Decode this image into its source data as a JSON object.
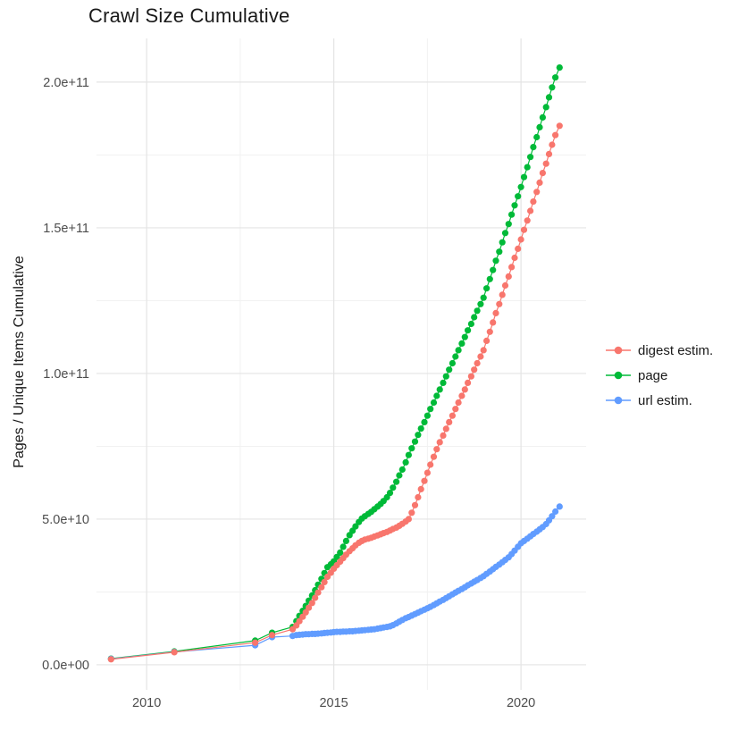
{
  "title": "Crawl Size Cumulative",
  "chart_data": {
    "type": "scatter",
    "title": "Crawl Size Cumulative",
    "xlabel": "",
    "ylabel": "Pages / Unique Items Cumulative",
    "units": "values in billions of pages (1e9)",
    "grid": "on",
    "legend_position": "right",
    "x_domain": [
      2008.66,
      2021.74
    ],
    "y_domain_e9": [
      -8.6,
      215.0
    ],
    "x_ticks": {
      "values": [
        2010,
        2015,
        2020
      ],
      "labels": [
        "2010",
        "2015",
        "2020"
      ],
      "minor": [
        2012.5,
        2017.5
      ]
    },
    "y_ticks": {
      "values": [
        0,
        50,
        100,
        150,
        200
      ],
      "labels": [
        "0.0e+00",
        "5.0e+10",
        "1.0e+11",
        "1.5e+11",
        "2.0e+11"
      ],
      "minor": [
        25,
        75,
        125,
        175
      ]
    },
    "series": [
      {
        "name": "digest estim.",
        "color": "#F8766D",
        "points": [
          [
            2009.05,
            1.9
          ],
          [
            2010.74,
            4.3
          ],
          [
            2012.9,
            7.6
          ],
          [
            2013.35,
            10.2
          ],
          [
            2013.9,
            12.2
          ],
          [
            2014,
            13.5
          ],
          [
            2014.08,
            15
          ],
          [
            2014.17,
            16.5
          ],
          [
            2014.25,
            18
          ],
          [
            2014.33,
            19.6
          ],
          [
            2014.42,
            21.2
          ],
          [
            2014.5,
            23
          ],
          [
            2014.58,
            24.8
          ],
          [
            2014.67,
            26.6
          ],
          [
            2014.75,
            28.4
          ],
          [
            2014.83,
            30.2
          ],
          [
            2014.92,
            31.6
          ],
          [
            2015,
            33
          ],
          [
            2015.08,
            34.2
          ],
          [
            2015.17,
            35.4
          ],
          [
            2015.25,
            36.6
          ],
          [
            2015.33,
            37.8
          ],
          [
            2015.42,
            39
          ],
          [
            2015.5,
            40
          ],
          [
            2015.58,
            41
          ],
          [
            2015.67,
            41.9
          ],
          [
            2015.75,
            42.5
          ],
          [
            2015.83,
            43
          ],
          [
            2015.92,
            43.3
          ],
          [
            2016,
            43.6
          ],
          [
            2016.08,
            44
          ],
          [
            2016.17,
            44.4
          ],
          [
            2016.25,
            44.8
          ],
          [
            2016.33,
            45.2
          ],
          [
            2016.42,
            45.6
          ],
          [
            2016.5,
            46.1
          ],
          [
            2016.58,
            46.6
          ],
          [
            2016.67,
            47.1
          ],
          [
            2016.75,
            47.7
          ],
          [
            2016.83,
            48.4
          ],
          [
            2016.92,
            49.2
          ],
          [
            2017,
            50
          ],
          [
            2017.08,
            52.2
          ],
          [
            2017.17,
            54.8
          ],
          [
            2017.25,
            57.5
          ],
          [
            2017.33,
            60.3
          ],
          [
            2017.42,
            63.1
          ],
          [
            2017.5,
            65.9
          ],
          [
            2017.58,
            68.7
          ],
          [
            2017.67,
            71.4
          ],
          [
            2017.75,
            74
          ],
          [
            2017.83,
            76.4
          ],
          [
            2017.92,
            78.7
          ],
          [
            2018,
            81
          ],
          [
            2018.08,
            83.3
          ],
          [
            2018.17,
            85.5
          ],
          [
            2018.25,
            87.8
          ],
          [
            2018.33,
            90
          ],
          [
            2018.42,
            92.3
          ],
          [
            2018.5,
            94.5
          ],
          [
            2018.58,
            96.8
          ],
          [
            2018.67,
            99
          ],
          [
            2018.75,
            101.3
          ],
          [
            2018.83,
            103.5
          ],
          [
            2018.92,
            105.8
          ],
          [
            2019,
            108
          ],
          [
            2019.08,
            111.2
          ],
          [
            2019.17,
            114.3
          ],
          [
            2019.25,
            117.5
          ],
          [
            2019.33,
            120.7
          ],
          [
            2019.42,
            123.8
          ],
          [
            2019.5,
            127
          ],
          [
            2019.58,
            130.2
          ],
          [
            2019.67,
            133.3
          ],
          [
            2019.75,
            136.5
          ],
          [
            2019.83,
            139.7
          ],
          [
            2019.92,
            142.8
          ],
          [
            2020,
            146
          ],
          [
            2020.08,
            149.3
          ],
          [
            2020.17,
            152.5
          ],
          [
            2020.25,
            155.8
          ],
          [
            2020.33,
            159
          ],
          [
            2020.42,
            162.3
          ],
          [
            2020.5,
            165.5
          ],
          [
            2020.58,
            168.8
          ],
          [
            2020.67,
            172
          ],
          [
            2020.75,
            175.3
          ],
          [
            2020.83,
            178.5
          ],
          [
            2020.92,
            181.8
          ],
          [
            2021.03,
            185
          ]
        ]
      },
      {
        "name": "page",
        "color": "#00BA38",
        "points": [
          [
            2009.05,
            2.1
          ],
          [
            2010.74,
            4.6
          ],
          [
            2012.9,
            8.3
          ],
          [
            2013.35,
            11
          ],
          [
            2013.9,
            13
          ],
          [
            2014,
            15
          ],
          [
            2014.08,
            16.8
          ],
          [
            2014.17,
            18.5
          ],
          [
            2014.25,
            20.2
          ],
          [
            2014.33,
            22
          ],
          [
            2014.42,
            23.8
          ],
          [
            2014.5,
            25.6
          ],
          [
            2014.58,
            27.5
          ],
          [
            2014.67,
            29.5
          ],
          [
            2014.75,
            31.5
          ],
          [
            2014.83,
            33.5
          ],
          [
            2014.92,
            34.5
          ],
          [
            2015,
            35.5
          ],
          [
            2015.08,
            37
          ],
          [
            2015.17,
            38.5
          ],
          [
            2015.25,
            40.5
          ],
          [
            2015.33,
            42.5
          ],
          [
            2015.42,
            44.5
          ],
          [
            2015.5,
            46
          ],
          [
            2015.58,
            47.5
          ],
          [
            2015.67,
            49
          ],
          [
            2015.75,
            50.2
          ],
          [
            2015.83,
            51
          ],
          [
            2015.92,
            51.8
          ],
          [
            2016,
            52.5
          ],
          [
            2016.08,
            53.4
          ],
          [
            2016.17,
            54.3
          ],
          [
            2016.25,
            55.2
          ],
          [
            2016.33,
            56.2
          ],
          [
            2016.42,
            57.5
          ],
          [
            2016.5,
            59
          ],
          [
            2016.58,
            60.8
          ],
          [
            2016.67,
            62.8
          ],
          [
            2016.75,
            65
          ],
          [
            2016.83,
            67
          ],
          [
            2016.92,
            69.5
          ],
          [
            2017,
            72
          ],
          [
            2017.08,
            74.3
          ],
          [
            2017.17,
            76.6
          ],
          [
            2017.25,
            78.9
          ],
          [
            2017.33,
            81.1
          ],
          [
            2017.42,
            83.3
          ],
          [
            2017.5,
            85.5
          ],
          [
            2017.58,
            87.8
          ],
          [
            2017.67,
            90
          ],
          [
            2017.75,
            92.3
          ],
          [
            2017.83,
            94.5
          ],
          [
            2017.92,
            96.8
          ],
          [
            2018,
            99
          ],
          [
            2018.08,
            101.3
          ],
          [
            2018.17,
            103.5
          ],
          [
            2018.25,
            105.8
          ],
          [
            2018.33,
            108
          ],
          [
            2018.42,
            110.3
          ],
          [
            2018.5,
            112.5
          ],
          [
            2018.58,
            114.8
          ],
          [
            2018.67,
            117
          ],
          [
            2018.75,
            119.3
          ],
          [
            2018.83,
            121.5
          ],
          [
            2018.92,
            123.8
          ],
          [
            2019,
            126
          ],
          [
            2019.08,
            129.2
          ],
          [
            2019.17,
            132.4
          ],
          [
            2019.25,
            135.5
          ],
          [
            2019.33,
            138.7
          ],
          [
            2019.42,
            141.8
          ],
          [
            2019.5,
            145
          ],
          [
            2019.58,
            148.2
          ],
          [
            2019.67,
            151.3
          ],
          [
            2019.75,
            154.5
          ],
          [
            2019.83,
            157.7
          ],
          [
            2019.92,
            160.8
          ],
          [
            2020,
            164
          ],
          [
            2020.08,
            167.4
          ],
          [
            2020.17,
            170.8
          ],
          [
            2020.25,
            174.3
          ],
          [
            2020.33,
            177.7
          ],
          [
            2020.42,
            181.1
          ],
          [
            2020.5,
            184.5
          ],
          [
            2020.58,
            187.9
          ],
          [
            2020.67,
            191.4
          ],
          [
            2020.75,
            194.8
          ],
          [
            2020.83,
            198.2
          ],
          [
            2020.92,
            201.6
          ],
          [
            2021.03,
            205
          ]
        ]
      },
      {
        "name": "url estim.",
        "color": "#619CFF",
        "points": [
          [
            2009.05,
            2
          ],
          [
            2010.74,
            4.4
          ],
          [
            2012.9,
            6.7
          ],
          [
            2013.35,
            9.5
          ],
          [
            2013.9,
            9.9
          ],
          [
            2014,
            10.2
          ],
          [
            2014.08,
            10.3
          ],
          [
            2014.17,
            10.4
          ],
          [
            2014.25,
            10.5
          ],
          [
            2014.33,
            10.5
          ],
          [
            2014.42,
            10.6
          ],
          [
            2014.5,
            10.6
          ],
          [
            2014.58,
            10.7
          ],
          [
            2014.67,
            10.8
          ],
          [
            2014.75,
            10.9
          ],
          [
            2014.83,
            11
          ],
          [
            2014.92,
            11.1
          ],
          [
            2015,
            11.2
          ],
          [
            2015.08,
            11.3
          ],
          [
            2015.17,
            11.3
          ],
          [
            2015.25,
            11.4
          ],
          [
            2015.33,
            11.4
          ],
          [
            2015.42,
            11.5
          ],
          [
            2015.5,
            11.5
          ],
          [
            2015.58,
            11.6
          ],
          [
            2015.67,
            11.7
          ],
          [
            2015.75,
            11.8
          ],
          [
            2015.83,
            11.9
          ],
          [
            2015.92,
            12
          ],
          [
            2016,
            12.1
          ],
          [
            2016.08,
            12.2
          ],
          [
            2016.17,
            12.4
          ],
          [
            2016.25,
            12.6
          ],
          [
            2016.33,
            12.8
          ],
          [
            2016.42,
            13
          ],
          [
            2016.5,
            13.2
          ],
          [
            2016.58,
            13.6
          ],
          [
            2016.67,
            14.2
          ],
          [
            2016.75,
            14.8
          ],
          [
            2016.83,
            15.4
          ],
          [
            2016.92,
            16
          ],
          [
            2017,
            16.4
          ],
          [
            2017.08,
            16.9
          ],
          [
            2017.17,
            17.4
          ],
          [
            2017.25,
            17.9
          ],
          [
            2017.33,
            18.4
          ],
          [
            2017.42,
            18.9
          ],
          [
            2017.5,
            19.4
          ],
          [
            2017.58,
            19.9
          ],
          [
            2017.67,
            20.5
          ],
          [
            2017.75,
            21.1
          ],
          [
            2017.83,
            21.7
          ],
          [
            2017.92,
            22.3
          ],
          [
            2018,
            22.9
          ],
          [
            2018.08,
            23.5
          ],
          [
            2018.17,
            24.2
          ],
          [
            2018.25,
            24.8
          ],
          [
            2018.33,
            25.4
          ],
          [
            2018.42,
            26
          ],
          [
            2018.5,
            26.6
          ],
          [
            2018.58,
            27.3
          ],
          [
            2018.67,
            27.9
          ],
          [
            2018.75,
            28.5
          ],
          [
            2018.83,
            29.1
          ],
          [
            2018.92,
            29.8
          ],
          [
            2019,
            30.4
          ],
          [
            2019.08,
            31.2
          ],
          [
            2019.17,
            32
          ],
          [
            2019.25,
            32.8
          ],
          [
            2019.33,
            33.6
          ],
          [
            2019.42,
            34.4
          ],
          [
            2019.5,
            35.2
          ],
          [
            2019.58,
            36
          ],
          [
            2019.67,
            36.9
          ],
          [
            2019.75,
            38
          ],
          [
            2019.83,
            39.2
          ],
          [
            2019.92,
            40.5
          ],
          [
            2020,
            41.7
          ],
          [
            2020.08,
            42.5
          ],
          [
            2020.17,
            43.3
          ],
          [
            2020.25,
            44.1
          ],
          [
            2020.33,
            44.9
          ],
          [
            2020.42,
            45.7
          ],
          [
            2020.5,
            46.5
          ],
          [
            2020.58,
            47.3
          ],
          [
            2020.67,
            48.3
          ],
          [
            2020.75,
            49.6
          ],
          [
            2020.83,
            51
          ],
          [
            2020.92,
            52.6
          ],
          [
            2021.03,
            54.3
          ]
        ]
      }
    ],
    "legend": [
      "digest estim.",
      "page",
      "url estim."
    ]
  },
  "style": {
    "grid_major_color": "#e4e4e4",
    "grid_minor_color": "#f1f1f1",
    "tick_label_color": "#4d4d4d",
    "text_color": "#1a1a1a",
    "background": "#ffffff"
  }
}
